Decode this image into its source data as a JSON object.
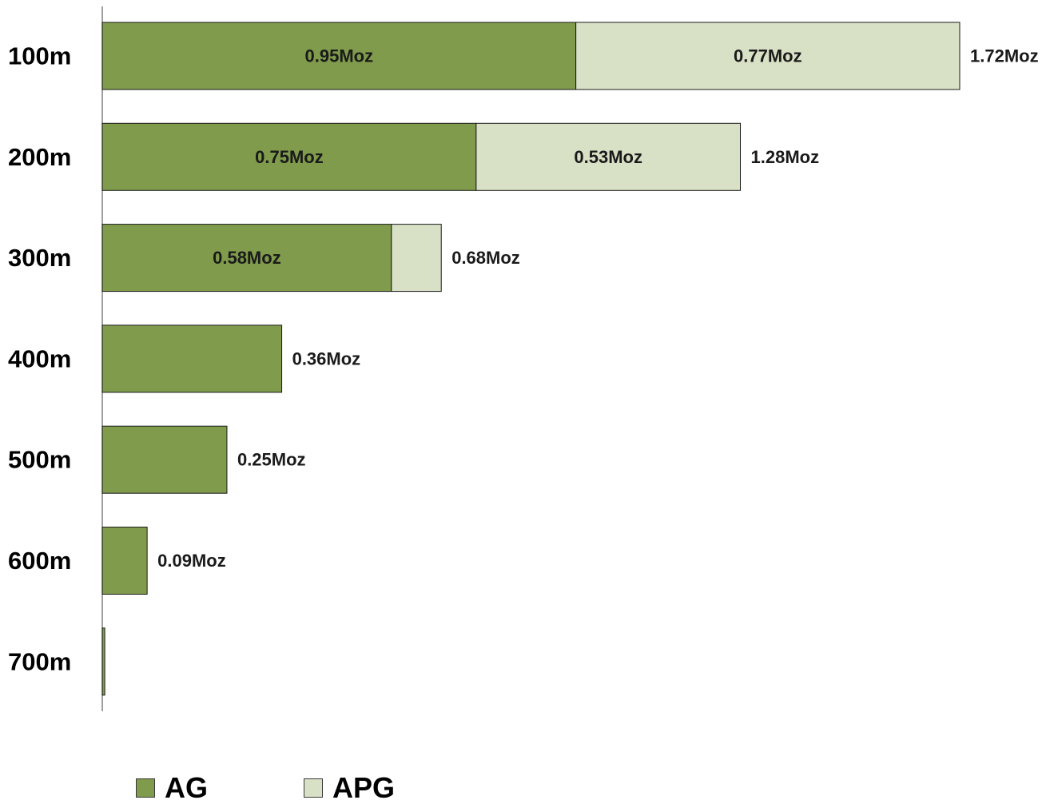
{
  "chart_data": {
    "type": "bar",
    "orientation": "horizontal",
    "stacked": true,
    "categories": [
      "100m",
      "200m",
      "300m",
      "400m",
      "500m",
      "600m",
      "700m"
    ],
    "series": [
      {
        "name": "AG",
        "color": "#7f9b4b",
        "values": [
          0.95,
          0.75,
          0.58,
          0.36,
          0.25,
          0.09,
          0.005
        ],
        "labels": [
          "0.95Moz",
          "0.75Moz",
          "0.58Moz",
          "",
          "",
          "",
          ""
        ]
      },
      {
        "name": "APG",
        "color": "#d8e1c6",
        "values": [
          0.77,
          0.53,
          0.1,
          0.0,
          0.0,
          0.0,
          0.0
        ],
        "labels": [
          "0.77Moz",
          "0.53Moz",
          "",
          "",
          "",
          "",
          ""
        ]
      }
    ],
    "totals": [
      1.72,
      1.28,
      0.68,
      0.36,
      0.25,
      0.09,
      0.005
    ],
    "total_labels": [
      "1.72Moz",
      "1.28Moz",
      "0.68Moz",
      "0.36Moz",
      "0.25Moz",
      "0.09Moz",
      ""
    ],
    "xlim": [
      0,
      1.72
    ],
    "grid": false,
    "legend_position": "bottom-left",
    "title": "",
    "xlabel": "",
    "ylabel": ""
  }
}
